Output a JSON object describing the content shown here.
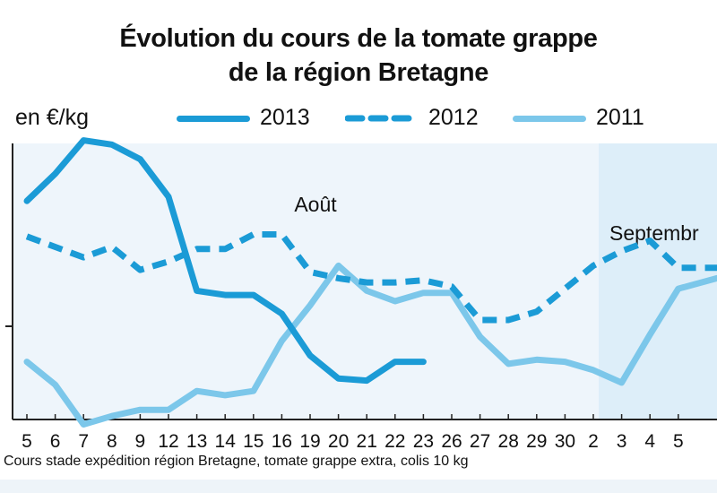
{
  "header": {
    "title_line1": "Évolution du cours de la tomate grappe",
    "title_line2": "de la région Bretagne",
    "unit": "en €/kg"
  },
  "legend": [
    {
      "label": "2013",
      "style": "solid",
      "color": "#1b9bd6"
    },
    {
      "label": "2012",
      "style": "dashed",
      "color": "#1b9bd6"
    },
    {
      "label": "2011",
      "style": "solid",
      "color": "#7cc7ea"
    }
  ],
  "footnote": "Cours stade expédition région Bretagne, tomate grappe extra, colis 10 kg",
  "chart_data": {
    "type": "line",
    "title": "Évolution du cours de la tomate grappe de la région Bretagne",
    "ylabel": "en €/kg",
    "categories": [
      "5",
      "6",
      "7",
      "8",
      "9",
      "12",
      "13",
      "14",
      "15",
      "16",
      "19",
      "20",
      "21",
      "22",
      "23",
      "26",
      "27",
      "28",
      "29",
      "30",
      "2",
      "3",
      "4",
      "5"
    ],
    "months": [
      {
        "label": "Août",
        "start_index": 0
      },
      {
        "label": "Septembr",
        "start_index": 20
      }
    ],
    "y_tick_label": "",
    "series": [
      {
        "name": "2013",
        "values": [
          1.9,
          2.03,
          2.19,
          2.17,
          2.1,
          1.92,
          1.47,
          1.45,
          1.45,
          1.36,
          1.16,
          1.05,
          1.04,
          1.13,
          1.13,
          null,
          null,
          null,
          null,
          null,
          null,
          null,
          null,
          null
        ]
      },
      {
        "name": "2012",
        "values": [
          1.73,
          1.68,
          1.63,
          1.68,
          1.57,
          1.61,
          1.67,
          1.67,
          1.74,
          1.74,
          1.56,
          1.53,
          1.51,
          1.51,
          1.52,
          1.49,
          1.33,
          1.33,
          1.37,
          1.48,
          1.59,
          1.66,
          1.71,
          1.58
        ]
      },
      {
        "name": "2011",
        "values": [
          1.13,
          1.02,
          0.83,
          0.87,
          0.9,
          0.9,
          0.99,
          0.97,
          0.99,
          1.23,
          1.4,
          1.59,
          1.47,
          1.42,
          1.46,
          1.46,
          1.25,
          1.12,
          1.14,
          1.13,
          1.09,
          1.03,
          1.26,
          1.48
        ]
      }
    ]
  }
}
